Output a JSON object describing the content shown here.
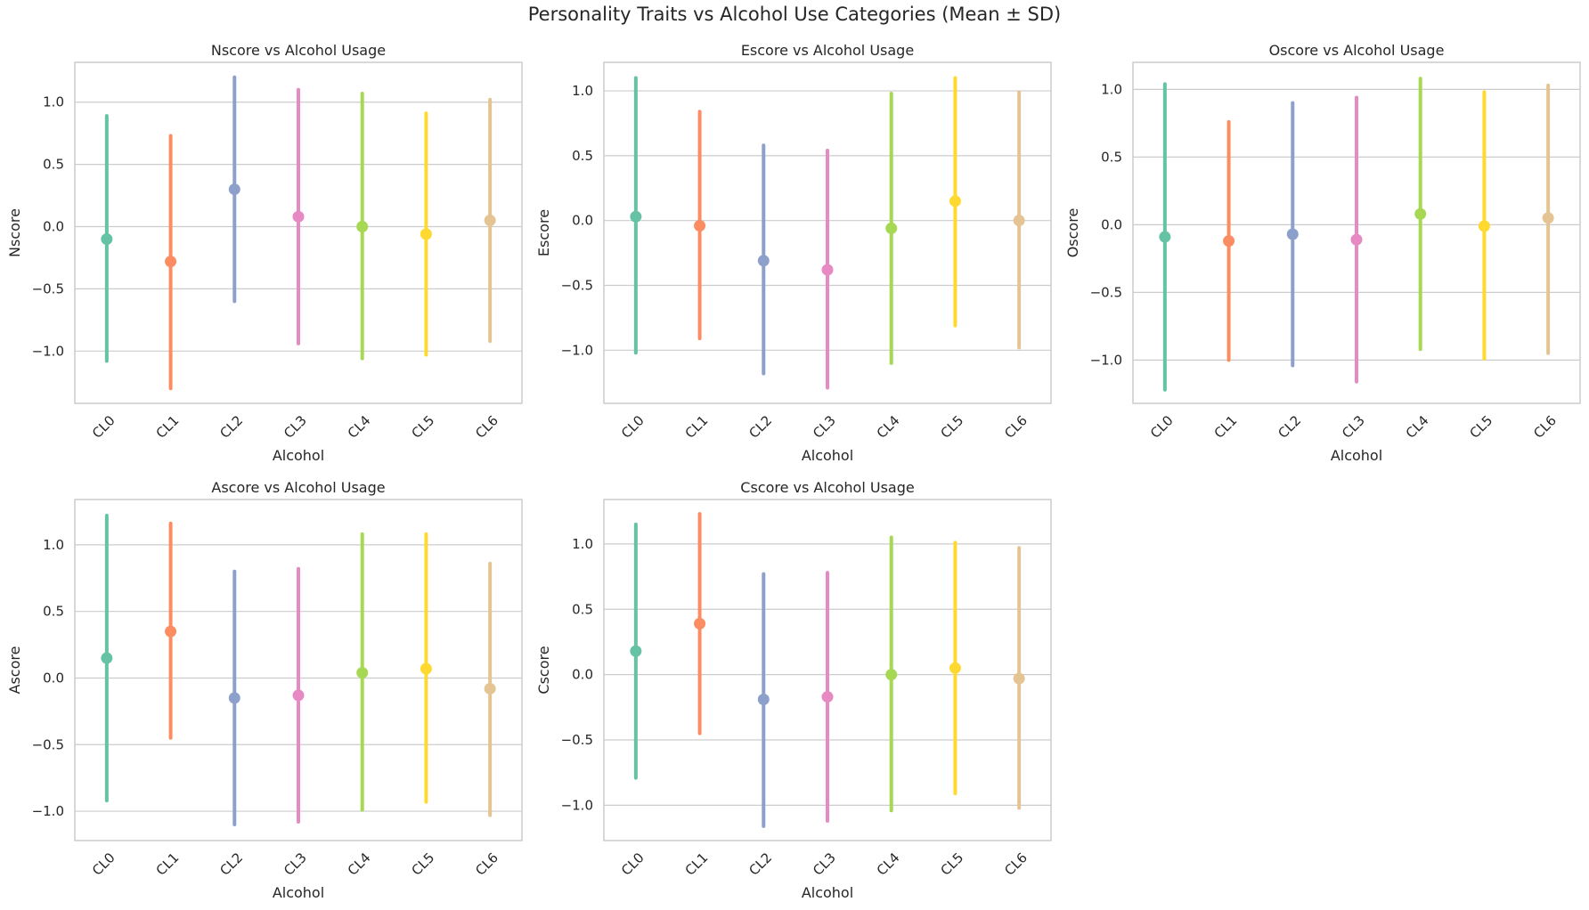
{
  "figure": {
    "title": "Personality Traits vs Alcohol Use Categories (Mean ± SD)"
  },
  "colors": [
    "#66c2a5",
    "#fc8d62",
    "#8da0cb",
    "#e78ac3",
    "#a6d854",
    "#ffd92f",
    "#e5c494"
  ],
  "chart_data": [
    {
      "type": "scatter",
      "title": "Nscore vs Alcohol Usage",
      "xlabel": "Alcohol",
      "ylabel": "Nscore",
      "categories": [
        "CL0",
        "CL1",
        "CL2",
        "CL3",
        "CL4",
        "CL5",
        "CL6"
      ],
      "means": [
        -0.1,
        -0.28,
        0.3,
        0.08,
        0.0,
        -0.06,
        0.05
      ],
      "lower": [
        -1.08,
        -1.3,
        -0.6,
        -0.94,
        -1.06,
        -1.03,
        -0.92
      ],
      "upper": [
        0.89,
        0.73,
        1.2,
        1.1,
        1.07,
        0.91,
        1.02
      ],
      "ylim": [
        -1.42,
        1.32
      ],
      "yticks": [
        -1.0,
        -0.5,
        0.0,
        0.5,
        1.0
      ],
      "ytick_labels": [
        "−1.0",
        "−0.5",
        "0.0",
        "0.5",
        "1.0"
      ],
      "grid": true
    },
    {
      "type": "scatter",
      "title": "Escore vs Alcohol Usage",
      "xlabel": "Alcohol",
      "ylabel": "Escore",
      "categories": [
        "CL0",
        "CL1",
        "CL2",
        "CL3",
        "CL4",
        "CL5",
        "CL6"
      ],
      "means": [
        0.03,
        -0.04,
        -0.31,
        -0.38,
        -0.06,
        0.15,
        0.0
      ],
      "lower": [
        -1.02,
        -0.91,
        -1.18,
        -1.29,
        -1.1,
        -0.81,
        -0.98
      ],
      "upper": [
        1.1,
        0.84,
        0.58,
        0.54,
        0.98,
        1.1,
        0.99
      ],
      "ylim": [
        -1.41,
        1.22
      ],
      "yticks": [
        -1.0,
        -0.5,
        0.0,
        0.5,
        1.0
      ],
      "ytick_labels": [
        "−1.0",
        "−0.5",
        "0.0",
        "0.5",
        "1.0"
      ],
      "grid": true
    },
    {
      "type": "scatter",
      "title": "Oscore vs Alcohol Usage",
      "xlabel": "Alcohol",
      "ylabel": "Oscore",
      "categories": [
        "CL0",
        "CL1",
        "CL2",
        "CL3",
        "CL4",
        "CL5",
        "CL6"
      ],
      "means": [
        -0.09,
        -0.12,
        -0.07,
        -0.11,
        0.08,
        -0.01,
        0.05
      ],
      "lower": [
        -1.22,
        -1.0,
        -1.04,
        -1.16,
        -0.92,
        -0.99,
        -0.95
      ],
      "upper": [
        1.04,
        0.76,
        0.9,
        0.94,
        1.08,
        0.98,
        1.03
      ],
      "ylim": [
        -1.32,
        1.2
      ],
      "yticks": [
        -1.0,
        -0.5,
        0.0,
        0.5,
        1.0
      ],
      "ytick_labels": [
        "−1.0",
        "−0.5",
        "0.0",
        "0.5",
        "1.0"
      ],
      "grid": true
    },
    {
      "type": "scatter",
      "title": "Ascore vs Alcohol Usage",
      "xlabel": "Alcohol",
      "ylabel": "Ascore",
      "categories": [
        "CL0",
        "CL1",
        "CL2",
        "CL3",
        "CL4",
        "CL5",
        "CL6"
      ],
      "means": [
        0.15,
        0.35,
        -0.15,
        -0.13,
        0.04,
        0.07,
        -0.08
      ],
      "lower": [
        -0.92,
        -0.45,
        -1.1,
        -1.08,
        -0.99,
        -0.93,
        -1.03
      ],
      "upper": [
        1.22,
        1.16,
        0.8,
        0.82,
        1.08,
        1.08,
        0.86
      ],
      "ylim": [
        -1.22,
        1.34
      ],
      "yticks": [
        -1.0,
        -0.5,
        0.0,
        0.5,
        1.0
      ],
      "ytick_labels": [
        "−1.0",
        "−0.5",
        "0.0",
        "0.5",
        "1.0"
      ],
      "grid": true
    },
    {
      "type": "scatter",
      "title": "Cscore vs Alcohol Usage",
      "xlabel": "Alcohol",
      "ylabel": "Cscore",
      "categories": [
        "CL0",
        "CL1",
        "CL2",
        "CL3",
        "CL4",
        "CL5",
        "CL6"
      ],
      "means": [
        0.18,
        0.39,
        -0.19,
        -0.17,
        0.0,
        0.05,
        -0.03
      ],
      "lower": [
        -0.79,
        -0.45,
        -1.16,
        -1.12,
        -1.04,
        -0.91,
        -1.02
      ],
      "upper": [
        1.15,
        1.23,
        0.77,
        0.78,
        1.05,
        1.01,
        0.97
      ],
      "ylim": [
        -1.27,
        1.34
      ],
      "yticks": [
        -1.0,
        -0.5,
        0.0,
        0.5,
        1.0
      ],
      "ytick_labels": [
        "−1.0",
        "−0.5",
        "0.0",
        "0.5",
        "1.0"
      ],
      "grid": true
    }
  ]
}
